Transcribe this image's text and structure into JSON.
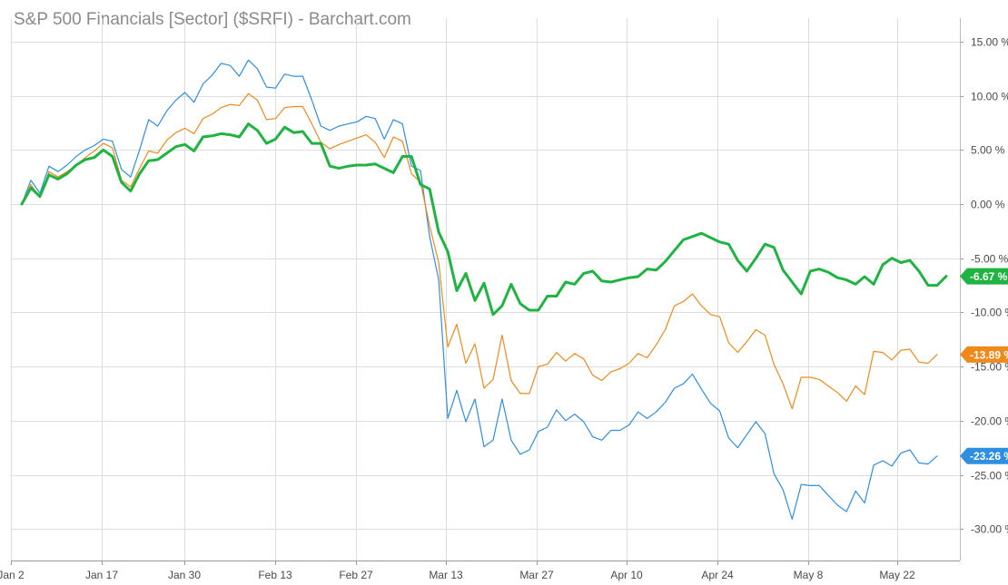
{
  "chart_data": {
    "type": "line",
    "title": "S&P 500 Financials [Sector] ($SRFI) - Barchart.com",
    "xlabel": "",
    "ylabel": "",
    "x_tick_labels": [
      "Jan 2",
      "Jan 17",
      "Jan 30",
      "Feb 13",
      "Feb 27",
      "Mar 13",
      "Mar 27",
      "Apr 10",
      "Apr 24",
      "May 8",
      "May 22"
    ],
    "y_ticks": [
      15,
      10,
      5,
      0,
      -5,
      -10,
      -15,
      -20,
      -25,
      -30
    ],
    "y_tick_labels": [
      "15.00 %",
      "10.00 %",
      "5.00 %",
      "0.00 %",
      "-5.00 %",
      "-10.00 %",
      "-15.00 %",
      "-20.00 %",
      "-25.00 %",
      "-30.00 %"
    ],
    "ylim": [
      -33.3,
      16.5
    ],
    "grid": true,
    "legend": "none",
    "points_count": 102,
    "series": [
      {
        "color": "#2e8fe0",
        "stroke_width": 1.2,
        "last_label": "-23.26 %",
        "values": [
          0,
          2.2,
          1.0,
          3.5,
          3.0,
          3.6,
          4.4,
          5.0,
          5.4,
          6.0,
          5.8,
          3.2,
          2.5,
          5.0,
          7.8,
          7.2,
          8.6,
          9.6,
          10.3,
          9.4,
          11.1,
          11.9,
          13.0,
          12.8,
          11.8,
          13.3,
          12.5,
          10.8,
          10.7,
          12.0,
          11.8,
          11.8,
          9.6,
          7.2,
          6.8,
          7.2,
          7.4,
          7.6,
          8.1,
          7.9,
          6.0,
          7.8,
          7.4,
          3.5,
          3.1,
          -3.0,
          -7.0,
          -19.8,
          -17.2,
          -20.1,
          -18.0,
          -22.4,
          -21.8,
          -18.0,
          -21.8,
          -23.1,
          -22.7,
          -21.0,
          -20.6,
          -19.0,
          -20.0,
          -19.4,
          -20.1,
          -21.5,
          -21.8,
          -20.9,
          -20.9,
          -20.4,
          -19.2,
          -19.8,
          -19.2,
          -18.3,
          -17.0,
          -16.6,
          -15.7,
          -17.1,
          -18.4,
          -19.1,
          -21.6,
          -22.5,
          -21.3,
          -20.1,
          -21.2,
          -24.9,
          -26.4,
          -29.1,
          -25.9,
          -26.0,
          -26.0,
          -26.9,
          -27.8,
          -28.4,
          -26.5,
          -27.6,
          -24.1,
          -23.7,
          -24.2,
          -23.0,
          -22.7,
          -23.9,
          -24.0,
          -23.26
        ]
      },
      {
        "color": "#ef8a1a",
        "stroke_width": 1.2,
        "last_label": "-13.89 %",
        "values": [
          0,
          1.8,
          0.6,
          3.0,
          2.5,
          3.0,
          3.6,
          4.3,
          4.9,
          5.6,
          5.2,
          2.2,
          1.6,
          3.3,
          4.9,
          4.7,
          5.9,
          6.6,
          7.0,
          6.5,
          7.9,
          8.3,
          8.9,
          9.2,
          9.1,
          10.2,
          9.6,
          7.8,
          7.9,
          8.9,
          9.0,
          9.0,
          7.4,
          5.7,
          5.1,
          5.5,
          5.8,
          6.1,
          6.4,
          5.7,
          4.3,
          6.2,
          5.8,
          2.8,
          2.0,
          -2.0,
          -5.4,
          -13.2,
          -11.1,
          -14.7,
          -12.9,
          -17.0,
          -16.2,
          -12.1,
          -16.3,
          -17.5,
          -17.5,
          -15.0,
          -14.8,
          -13.7,
          -14.5,
          -13.8,
          -14.3,
          -15.8,
          -16.3,
          -15.5,
          -15.2,
          -14.7,
          -13.8,
          -14.2,
          -13.0,
          -11.6,
          -9.4,
          -9.0,
          -8.3,
          -9.4,
          -10.2,
          -10.4,
          -12.8,
          -13.7,
          -12.7,
          -11.6,
          -12.1,
          -14.8,
          -16.6,
          -18.9,
          -16.0,
          -16.0,
          -16.2,
          -16.8,
          -17.4,
          -18.2,
          -16.8,
          -17.6,
          -13.6,
          -13.7,
          -14.4,
          -13.5,
          -13.4,
          -14.6,
          -14.7,
          -13.89
        ]
      },
      {
        "color": "#1fb442",
        "stroke_width": 3,
        "last_label": "-6.67 %",
        "values": [
          0,
          1.5,
          0.7,
          2.7,
          2.3,
          2.8,
          3.6,
          4.1,
          4.3,
          5.0,
          4.4,
          2.0,
          1.2,
          2.8,
          4.0,
          4.1,
          4.7,
          5.3,
          5.5,
          4.9,
          6.2,
          6.3,
          6.5,
          6.4,
          6.2,
          7.4,
          6.8,
          5.6,
          6.0,
          7.1,
          6.6,
          6.7,
          5.6,
          5.6,
          3.5,
          3.3,
          3.5,
          3.6,
          3.6,
          3.7,
          3.3,
          2.9,
          4.4,
          4.4,
          1.8,
          1.4,
          -2.6,
          -4.4,
          -8.0,
          -6.4,
          -8.9,
          -7.3,
          -10.2,
          -9.4,
          -7.4,
          -9.2,
          -9.8,
          -9.8,
          -8.5,
          -8.5,
          -7.2,
          -7.4,
          -6.4,
          -6.2,
          -7.1,
          -7.2,
          -7.0,
          -6.8,
          -6.7,
          -6.0,
          -6.1,
          -5.3,
          -4.3,
          -3.3,
          -3.0,
          -2.7,
          -3.1,
          -3.5,
          -3.7,
          -5.2,
          -6.2,
          -5.0,
          -3.7,
          -4.0,
          -6.1,
          -7.2,
          -8.3,
          -6.2,
          -6.0,
          -6.3,
          -6.8,
          -7.0,
          -7.4,
          -6.7,
          -7.4,
          -5.6,
          -5.0,
          -5.4,
          -5.2,
          -6.2,
          -7.5,
          -7.5,
          -6.67
        ]
      }
    ]
  }
}
